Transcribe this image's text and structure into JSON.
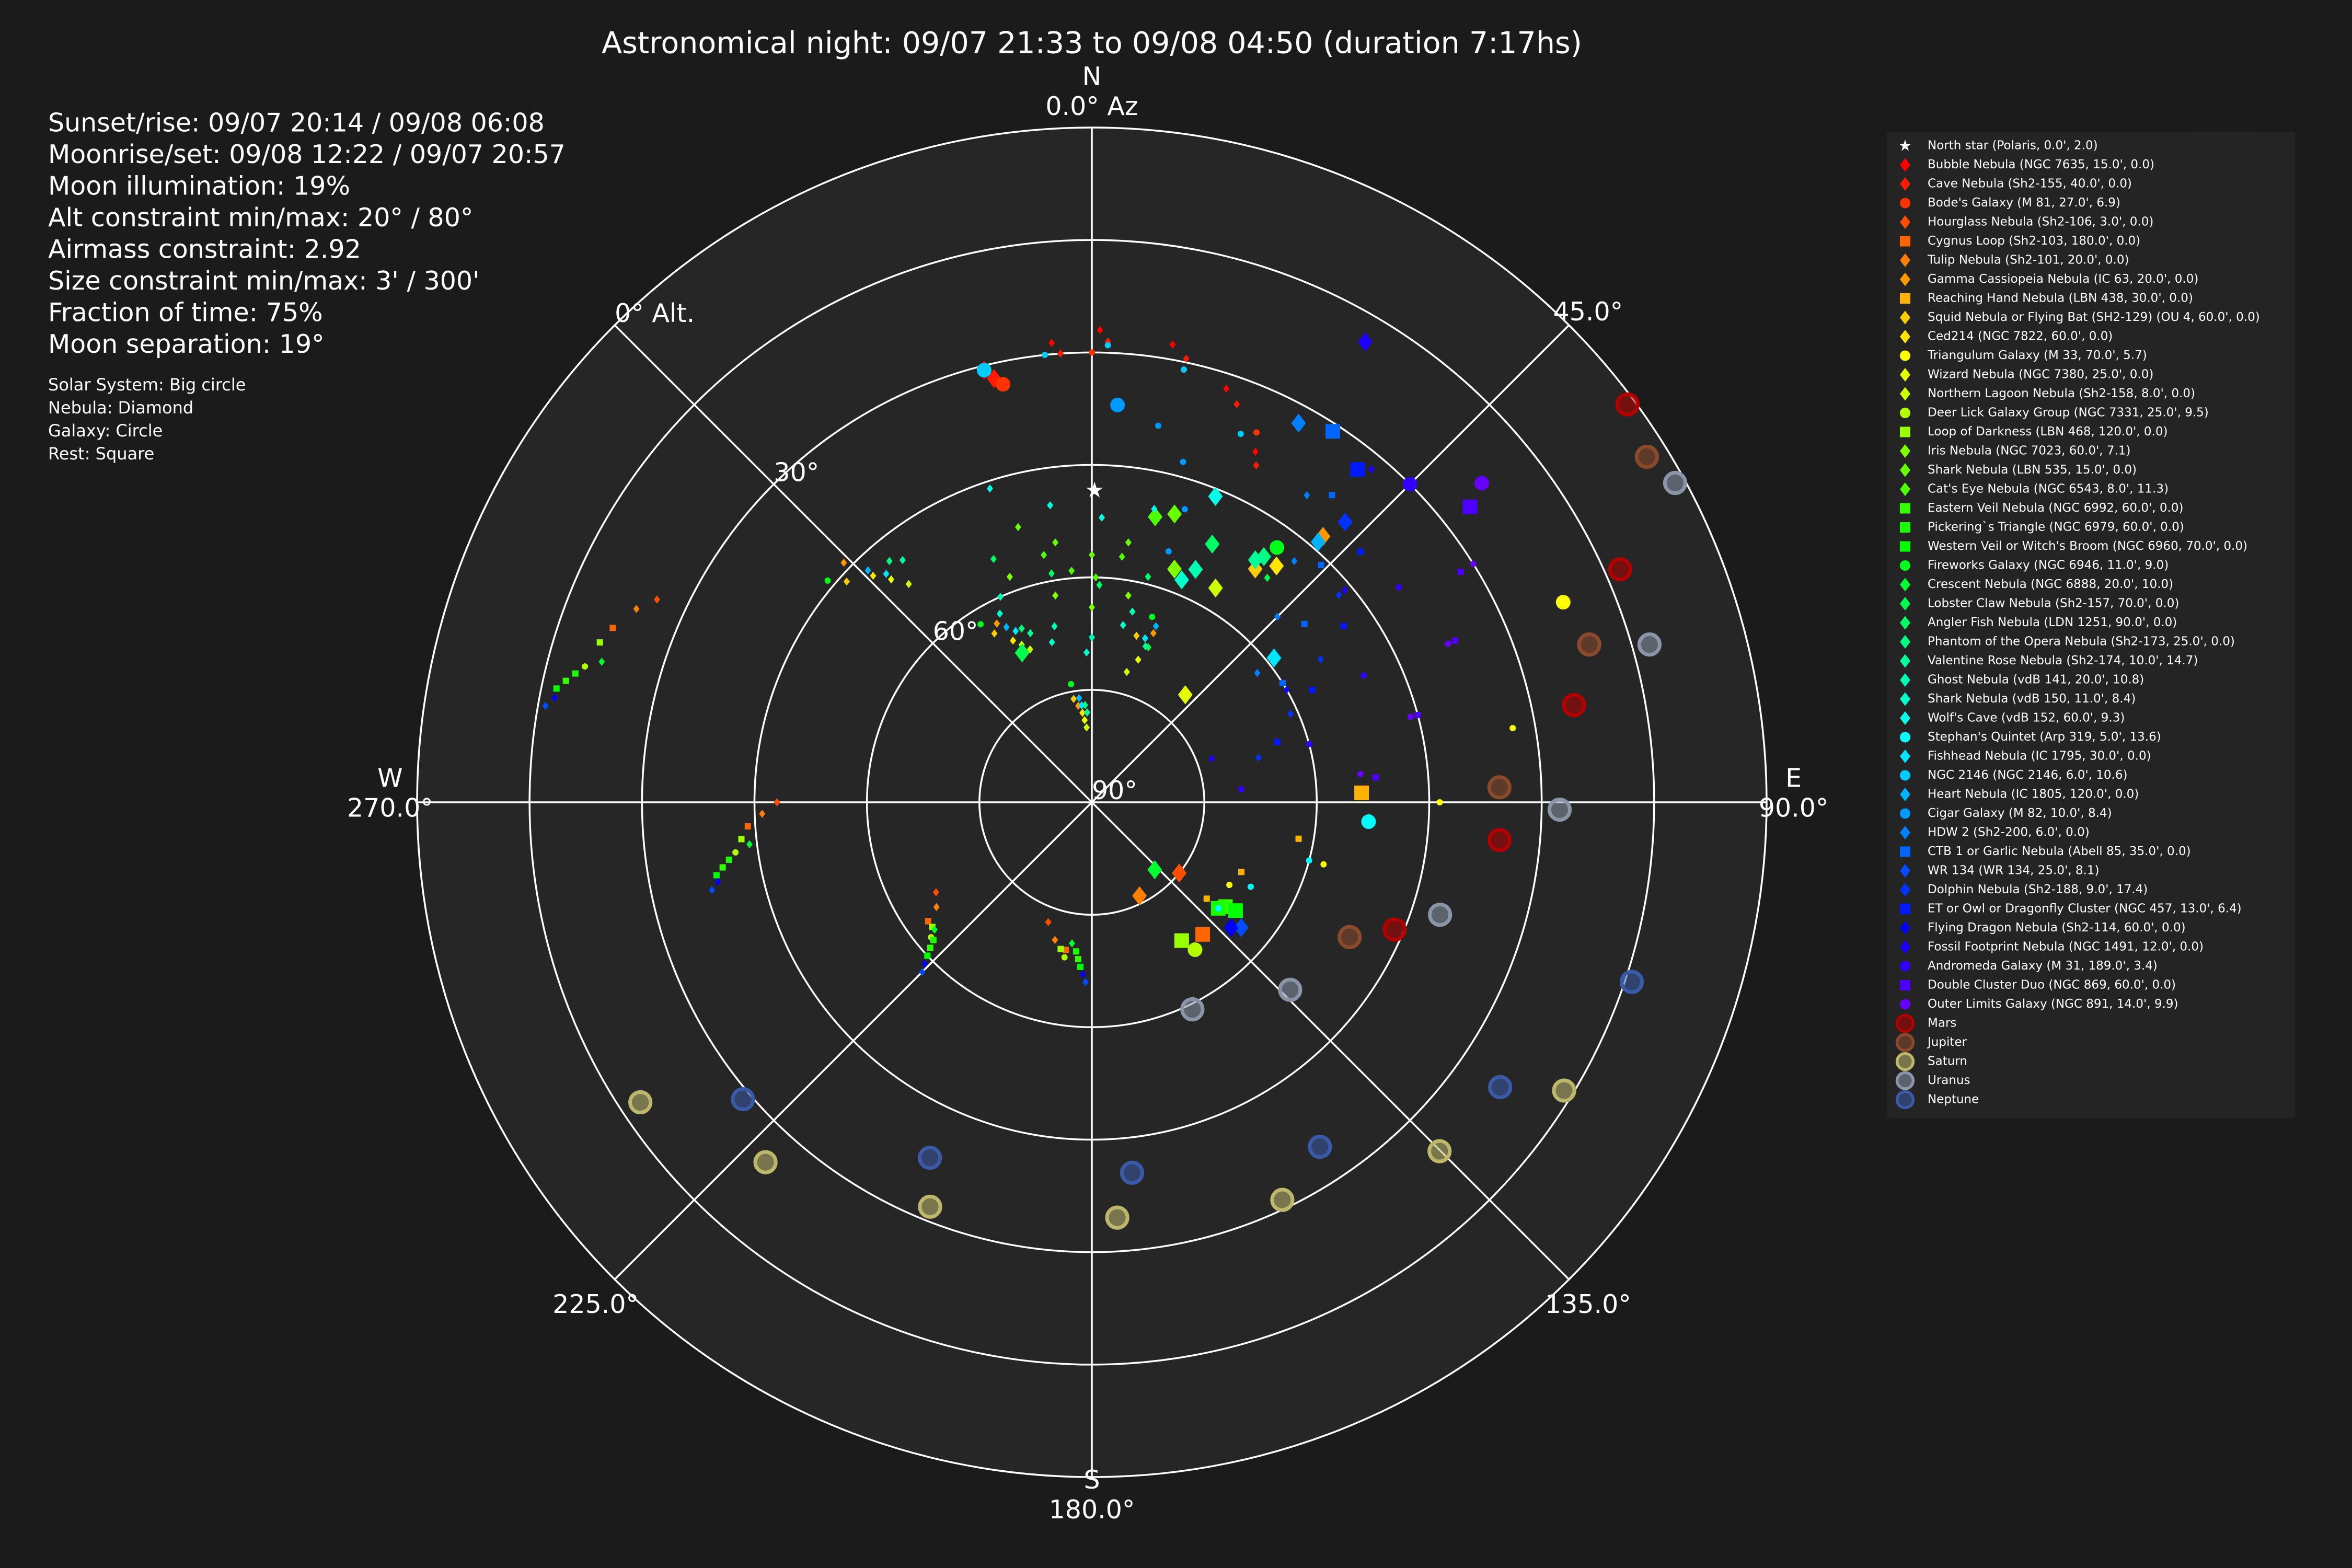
{
  "chart_data": {
    "type": "polar-scatter",
    "title": "Astronomical night: 09/07 21:33 to 09/08 04:50 (duration 7:17hs)",
    "info": [
      "Sunset/rise: 09/07 20:14 / 09/08 06:08",
      "Moonrise/set: 09/08 12:22 / 09/07 20:57",
      "Moon illumination: 19%",
      "Alt constraint min/max: 20° / 80°",
      "Airmass constraint: 2.92",
      "Size constraint min/max: 3' / 300'",
      "Fraction of time: 75%",
      "Moon separation: 19°"
    ],
    "notes": [
      "Solar System: Big circle",
      "Nebula: Diamond",
      "Galaxy: Circle",
      "Rest: Square"
    ],
    "theta_zero": "N",
    "theta_direction": "clockwise",
    "xlim": [
      0,
      360
    ],
    "xticks": [
      {
        "value": 0,
        "label": "0.0° Az"
      },
      {
        "value": 45,
        "label": "45.0°"
      },
      {
        "value": 90,
        "label": "90.0°"
      },
      {
        "value": 135,
        "label": "135.0°"
      },
      {
        "value": 180,
        "label": "180.0°"
      },
      {
        "value": 225,
        "label": "225.0°"
      },
      {
        "value": 270,
        "label": "270.0°"
      },
      {
        "value": 315,
        "label": null
      }
    ],
    "compass": [
      {
        "value": 0,
        "label": "N"
      },
      {
        "value": 90,
        "label": "E"
      },
      {
        "value": 180,
        "label": "S"
      },
      {
        "value": 270,
        "label": "W"
      }
    ],
    "ylim": [
      90,
      0
    ],
    "yticks": [
      {
        "value": 0,
        "label": "0° Alt."
      },
      {
        "value": 15,
        "label": null
      },
      {
        "value": 30,
        "label": "30°"
      },
      {
        "value": 45,
        "label": null
      },
      {
        "value": 60,
        "label": "60°"
      },
      {
        "value": 75,
        "label": null
      },
      {
        "value": 90,
        "label": "90°"
      }
    ],
    "ylabel_angle": 315,
    "grid": true,
    "legend": "upper right",
    "series": [
      {
        "name": "North star (Polaris, 0.0', 2.0)",
        "color": "#ffffff",
        "marker": "star",
        "x": [
          0.5
        ],
        "values": [
          48.4
        ]
      },
      {
        "name": "Bubble Nebula (NGC 7635, 15.0', 0.0)",
        "color": "#ff0000",
        "marker": "diamond",
        "x": [
          346,
          355,
          1,
          10,
          18,
          25
        ],
        "values": [
          30.6,
          28.5,
          27,
          28,
          32,
          38.4
        ]
      },
      {
        "name": "Cave Nebula (Sh2-155, 40.0', 0.0)",
        "color": "#ff1a00",
        "marker": "diamond",
        "x": [
          347,
          356,
          2,
          12,
          20,
          26
        ],
        "values": [
          32,
          30,
          28.5,
          29.5,
          33.5,
          40
        ]
      },
      {
        "name": "Bode's Galaxy (M 81, 27.0', 6.9)",
        "color": "#ff3300",
        "marker": "circle",
        "x": [
          348,
          0,
          12,
          24
        ],
        "values": [
          33,
          30,
          31,
          36
        ]
      },
      {
        "name": "Hourglass Nebula (Sh2-106, 3.0', 0.0)",
        "color": "#ff4d00",
        "marker": "diamond",
        "x": [
          129,
          200,
          240,
          270,
          295
        ],
        "values": [
          75,
          73,
          66,
          48,
          26
        ]
      },
      {
        "name": "Cygnus Loop (Sh2-103, 180.0', 0.0)",
        "color": "#ff6600",
        "marker": "square",
        "x": [
          140,
          190,
          234,
          266,
          290
        ],
        "values": [
          67,
          70,
          63,
          44,
          22
        ]
      },
      {
        "name": "Tulip Nebula (Sh2-101, 20.0', 0.0)",
        "color": "#ff8000",
        "marker": "diamond",
        "x": [
          153,
          195,
          236,
          268,
          293
        ],
        "values": [
          76,
          71,
          65,
          46,
          24
        ]
      },
      {
        "name": "Gamma Cassiopeia Nebula (IC 63, 20.0', 0.0)",
        "color": "#ff9900",
        "marker": "diamond",
        "x": [
          41,
          20,
          352,
          332,
          314
        ],
        "values": [
          43,
          66,
          77,
          63,
          44
        ]
      },
      {
        "name": "Reaching Hand Nebula (LBN 438, 30.0', 0.0)",
        "color": "#ffb300",
        "marker": "square",
        "x": [
          88,
          100,
          115,
          130
        ],
        "values": [
          54,
          62,
          68,
          70
        ]
      },
      {
        "name": "Squid Nebula or Flying Bat (SH2-129) (OU 4, 60.0', 0.0)",
        "color": "#ffcc00",
        "marker": "diamond",
        "x": [
          35,
          15,
          350,
          330,
          312
        ],
        "values": [
          52,
          67,
          76,
          64,
          46
        ]
      },
      {
        "name": "Ced214 (NGC 7822, 60.0', 0.0)",
        "color": "#ffe600",
        "marker": "diamond",
        "x": [
          38,
          20,
          354,
          334,
          316
        ],
        "values": [
          50,
          68,
          78,
          66,
          48
        ]
      },
      {
        "name": "Triangulum Galaxy (M 33, 70.0', 5.7)",
        "color": "#ffff00",
        "marker": "circle",
        "x": [
          67,
          80,
          90,
          105,
          121
        ],
        "values": [
          21.7,
          33,
          43.6,
          58,
          68.6
        ]
      },
      {
        "name": "Wizard Nebula (NGC 7380, 25.0', 0.0)",
        "color": "#e6ff00",
        "marker": "diamond",
        "x": [
          41,
          18,
          355,
          336,
          318
        ],
        "values": [
          71,
          70,
          79,
          67,
          50
        ]
      },
      {
        "name": "Northern Lagoon Nebula (Sh2-158, 8.0', 0.0)",
        "color": "#ccff00",
        "marker": "diamond",
        "x": [
          30,
          15,
          356,
          338,
          320
        ],
        "values": [
          57,
          72,
          80,
          68,
          52
        ]
      },
      {
        "name": "Deer Lick Galaxy Group (NGC 7331, 25.0', 9.5)",
        "color": "#b3ff00",
        "marker": "circle",
        "x": [
          145,
          190,
          230,
          262,
          285
        ],
        "values": [
          66,
          69,
          62,
          42,
          20
        ]
      },
      {
        "name": "Loop of Darkness (LBN 468, 120.0', 0.0)",
        "color": "#99ff00",
        "marker": "square",
        "x": [
          147,
          192,
          232,
          264,
          288
        ],
        "values": [
          68,
          70,
          63,
          43,
          21
        ]
      },
      {
        "name": "Iris Nebula (NGC 7023, 60.0', 7.1)",
        "color": "#80ff00",
        "marker": "diamond",
        "x": [
          19.5,
          10,
          0,
          350,
          340
        ],
        "values": [
          57,
          62,
          64,
          62,
          58
        ]
      },
      {
        "name": "Shark Nebula (LBN 535, 15.0', 0.0)",
        "color": "#66ff00",
        "marker": "diamond",
        "x": [
          16,
          8,
          0,
          352,
          345
        ],
        "values": [
          50,
          55,
          57,
          55,
          52
        ]
      },
      {
        "name": "Cat's Eye Nebula (NGC 6543, 8.0', 11.3)",
        "color": "#4dff00",
        "marker": "diamond",
        "x": [
          12.5,
          7,
          1,
          355,
          349
        ],
        "values": [
          51,
          57,
          60,
          59,
          56.4
        ]
      },
      {
        "name": "Eastern Veil Nebula (NGC 6992, 60.0', 0.0)",
        "color": "#33ff00",
        "marker": "square",
        "x": [
          128,
          185,
          228,
          260,
          283
        ],
        "values": [
          67.4,
          69,
          61,
          40,
          18
        ]
      },
      {
        "name": "Pickering`s Triangle (NGC 6979, 60.0', 0.0)",
        "color": "#1aff00",
        "marker": "square",
        "x": [
          130,
          186,
          229,
          261,
          284
        ],
        "values": [
          68,
          70,
          62,
          41,
          19
        ]
      },
      {
        "name": "Western Veil or Witch's Broom (NGC 6960, 70.0', 0.0)",
        "color": "#00ff00",
        "marker": "square",
        "x": [
          127,
          184,
          227,
          259,
          282
        ],
        "values": [
          66,
          68,
          60,
          39,
          17
        ]
      },
      {
        "name": "Fireworks Galaxy (NGC 6946, 11.0', 9.0)",
        "color": "#00ff1a",
        "marker": "circle",
        "x": [
          36,
          18,
          350,
          328,
          310
        ],
        "values": [
          48,
          64,
          74,
          62,
          44
        ]
      },
      {
        "name": "Crescent Nebula (NGC 6888, 20.0', 10.0)",
        "color": "#00ff33",
        "marker": "diamond",
        "x": [
          137,
          188,
          231,
          263,
          286
        ],
        "values": [
          77.7,
          71,
          63,
          44,
          22
        ]
      },
      {
        "name": "Lobster Claw Nebula (Sh2-157, 70.0', 0.0)",
        "color": "#00ff4d",
        "marker": "diamond",
        "x": [
          335,
          340,
          357,
          20,
          38
        ],
        "values": [
          68,
          66,
          78,
          68,
          52
        ]
      },
      {
        "name": "Angler Fish Nebula (LDN 1251, 90.0', 0.0)",
        "color": "#00ff66",
        "marker": "diamond",
        "x": [
          25,
          14,
          2,
          350,
          338
        ],
        "values": [
          52,
          59,
          61,
          59,
          55
        ]
      },
      {
        "name": "Phantom of the Opera Nebula (Sh2-173, 25.0', 0.0)",
        "color": "#00ff80",
        "marker": "diamond",
        "x": [
          35,
          18,
          356,
          338,
          320
        ],
        "values": [
          50,
          67,
          77,
          65,
          48
        ]
      },
      {
        "name": "Valentine Rose Nebula (Sh2-174, 10.0', 14.7)",
        "color": "#00ff99",
        "marker": "diamond",
        "x": [
          34,
          19,
          357,
          340,
          322
        ],
        "values": [
          51,
          68,
          78,
          66,
          49
        ]
      },
      {
        "name": "Ghost Nebula (vdB 141, 20.0', 10.8)",
        "color": "#00ffb3",
        "marker": "diamond",
        "x": [
          24,
          12,
          0,
          348,
          336
        ],
        "values": [
          56,
          64,
          68,
          66,
          60
        ]
      },
      {
        "name": "Shark Nebula (vdB 150, 11.0', 8.4)",
        "color": "#00ffcc",
        "marker": "diamond",
        "x": [
          22,
          10,
          358,
          346,
          334
        ],
        "values": [
          58,
          66,
          70,
          68,
          62
        ]
      },
      {
        "name": "Wolf's Cave (vdB 152, 60.0', 9.3)",
        "color": "#00ffe6",
        "marker": "diamond",
        "x": [
          22,
          12,
          2,
          352,
          342
        ],
        "values": [
          46,
          50,
          52,
          50,
          46
        ]
      },
      {
        "name": "Stephan's Quintet (Arp 319, 5.0', 13.6)",
        "color": "#00ffff",
        "marker": "circle",
        "x": [
          94,
          105,
          118,
          130
        ],
        "values": [
          53,
          60,
          66,
          68
        ]
      },
      {
        "name": "Fishhead Nebula (IC 1795, 30.0', 0.0)",
        "color": "#00e6ff",
        "marker": "diamond",
        "x": [
          51.6,
          18,
          354,
          336,
          318
        ],
        "values": [
          59,
          67,
          77,
          65,
          49
        ]
      },
      {
        "name": "NGC 2146 (NGC 2146, 6.0', 10.6)",
        "color": "#00ccff",
        "marker": "circle",
        "x": [
          346,
          354,
          2,
          12,
          22
        ],
        "values": [
          30.6,
          30,
          29,
          31,
          37
        ]
      },
      {
        "name": "Heart Nebula (IC 1805, 120.0', 0.0)",
        "color": "#00b3ff",
        "marker": "diamond",
        "x": [
          41,
          20,
          353,
          334,
          316
        ],
        "values": [
          44,
          65,
          76,
          64,
          47
        ]
      },
      {
        "name": "Cigar Galaxy (M 82, 10.0', 8.4)",
        "color": "#0099ff",
        "marker": "circle",
        "x": [
          3.7,
          10,
          15,
          17.6,
          17
        ],
        "values": [
          36.9,
          39,
          43,
          49,
          55
        ]
      },
      {
        "name": "HDW 2 (Sh2-200, 6.0', 0.0)",
        "color": "#0080ff",
        "marker": "diamond",
        "x": [
          28.6,
          35,
          40,
          45,
          52
        ],
        "values": [
          32.4,
          40,
          48,
          55,
          62
        ]
      },
      {
        "name": "CTB 1 or Garlic Nebula (Abell 85, 35.0', 0.0)",
        "color": "#0066ff",
        "marker": "square",
        "x": [
          33,
          38,
          44,
          50,
          58
        ],
        "values": [
          31,
          38,
          46,
          53,
          60
        ]
      },
      {
        "name": "WR 134 (WR 134, 25.0', 8.1)",
        "color": "#004dff",
        "marker": "diamond",
        "x": [
          130,
          182,
          225,
          257,
          280
        ],
        "values": [
          64,
          66,
          58,
          38,
          16
        ]
      },
      {
        "name": "Dolphin Nebula (Sh2-188, 9.0', 17.4)",
        "color": "#0033ff",
        "marker": "diamond",
        "x": [
          42.1,
          50,
          58,
          66,
          75
        ],
        "values": [
          39.6,
          47,
          54,
          61,
          67
        ]
      },
      {
        "name": "ET or Owl or Dragonfly Cluster (NGC 457, 13.0', 6.4)",
        "color": "#001aff",
        "marker": "square",
        "x": [
          38.6,
          47,
          55,
          63,
          72
        ],
        "values": [
          33.2,
          41,
          49,
          57,
          64
        ]
      },
      {
        "name": "Flying Dragon Nebula (Sh2-114, 60.0', 0.0)",
        "color": "#0000ff",
        "marker": "diamond",
        "x": [
          132,
          183,
          226,
          258,
          281
        ],
        "values": [
          65,
          67,
          59,
          39,
          17
        ]
      },
      {
        "name": "Fossil Footprint Nebula (NGC 1491, 12.0', 0.0)",
        "color": "#1a00ff",
        "marker": "diamond",
        "x": [
          30.7,
          40,
          50,
          60,
          70
        ],
        "values": [
          18.6,
          32,
          46,
          60,
          73
        ]
      },
      {
        "name": "Andromeda Galaxy (M 31, 189.0', 3.4)",
        "color": "#3300ff",
        "marker": "circle",
        "x": [
          45,
          55,
          65,
          75,
          85
        ],
        "values": [
          30,
          40,
          50,
          60,
          70
        ]
      },
      {
        "name": "Double Cluster Duo (NGC 869, 60.0', 0.0)",
        "color": "#4d00ff",
        "marker": "square",
        "x": [
          52,
          58,
          66,
          75,
          85
        ],
        "values": [
          26,
          32,
          37,
          45,
          52
        ]
      },
      {
        "name": "Outer Limits Galaxy (NGC 891, 14.0', 9.9)",
        "color": "#6600ff",
        "marker": "circle",
        "x": [
          50.7,
          58,
          66,
          75,
          84
        ],
        "values": [
          22.8,
          30,
          38,
          46,
          54
        ]
      },
      {
        "name": "Mars",
        "color": "#b30000",
        "marker": "big circle",
        "x": [
          53.4,
          66.2,
          78.6,
          95.3,
          112.8
        ],
        "values": [
          1,
          13,
          24.4,
          35.4,
          46.2
        ]
      },
      {
        "name": "Jupiter",
        "color": "#8b4a2b",
        "marker": "big circle",
        "x": [
          58.1,
          72.4,
          87.9,
          117.6
        ],
        "values": [
          2.8,
          20.4,
          35.6,
          51.2
        ]
      },
      {
        "name": "Saturn",
        "color": "#bdb76b",
        "marker": "big circle",
        "x": [
          121.4,
          135.1,
          154.4,
          176.5,
          201.8,
          222.2,
          236.4
        ],
        "values": [
          16.2,
          24.3,
          31.2,
          34.5,
          31.9,
          25.2,
          17.7
        ]
      },
      {
        "name": "Uranus",
        "color": "#8a96a8",
        "marker": "big circle",
        "x": [
          61.3,
          74.2,
          90.9,
          107.9,
          133.4,
          154.1
        ],
        "values": [
          1.3,
          12.7,
          27.6,
          41.2,
          53.6,
          59.3
        ]
      },
      {
        "name": "Neptune",
        "color": "#3a5aa8",
        "marker": "big circle",
        "x": [
          108.4,
          124.9,
          146.5,
          173.8,
          204.5,
          229.6
        ],
        "values": [
          14.1,
          23.6,
          34.9,
          40.3,
          37.9,
          28.9
        ]
      }
    ]
  }
}
